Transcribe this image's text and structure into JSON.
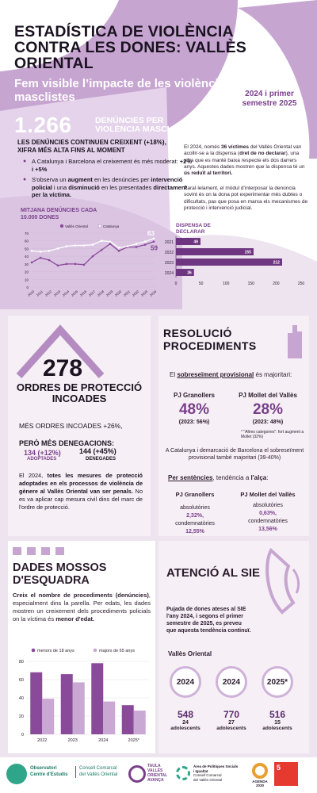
{
  "header": {
    "title": "ESTADÍSTICA DE VIOLÈNCIA CONTRA LES DONES: VALLÈS ORIENTAL",
    "subtitle": "Fem visible l’impacte de les violències masclistes",
    "period": "2024 i primer semestre 2025"
  },
  "denuncies": {
    "number": "1.266",
    "label": "DENÚNCIES PER VIOLÈNCIA MASCLISTA",
    "lead": "LES DENÚNCIES CONTINUEN CREIXENT (+18%), XIFRA MÉS ALTA FINS AL MOMENT",
    "bullet1_a": "A Catalunya i Barcelona el creixement és més moderat: ",
    "bullet1_b": "+2% i +5%",
    "bullet2_a": "S'observa un ",
    "bullet2_b": "augment",
    "bullet2_c": " en les denúncies per ",
    "bullet2_d": "intervenció policial",
    "bullet2_e": " i una ",
    "bullet2_f": "disminució",
    "bullet2_g": " en les presentades ",
    "bullet2_h": "directament per la víctima.",
    "right1_a": "El 2024, només ",
    "right1_b": "36 víctimes",
    "right1_c": " del Vallès Oriental van acollir-se a la dispensa (",
    "right1_d": "dret de no declarar",
    "right1_e": "), una xifra que es manté baixa respecte els dos darrers anys. Aquestes dades mostren que la dispensa té un ",
    "right1_f": "ús reduït al territori.",
    "right2": "Paral·lelament, el mòdul d'interposar la denúncia sovint és on la dona pot experimentar més dubtes o dificultats, pas que posa en marxa els mecanismes de protecció i intervenció judicial."
  },
  "chart_data": [
    {
      "type": "line",
      "title": "MITJANA DENÚNCIES CADA 10.000 DONES",
      "x": [
        "2010",
        "2011",
        "2012",
        "2013",
        "2014",
        "2015",
        "2016",
        "2017",
        "2018",
        "2019",
        "2020",
        "2021",
        "2022",
        "2023",
        "2024"
      ],
      "series": [
        {
          "name": "Vallès Oriental",
          "color": "#8a4a9a",
          "values": [
            32,
            38,
            35,
            28,
            30,
            30,
            29,
            40,
            48,
            56,
            47,
            52,
            52,
            55,
            59
          ]
        },
        {
          "name": "Catalunya",
          "color": "#ffffff",
          "values": [
            47,
            46,
            47,
            50,
            53,
            54,
            54,
            55,
            60,
            59,
            51,
            53,
            56,
            59,
            63
          ]
        }
      ],
      "ylim": [
        0,
        70
      ],
      "yticks": [
        0,
        10,
        20,
        30,
        40,
        50,
        60,
        70
      ],
      "annotations": [
        "63",
        "59"
      ],
      "legend": "top"
    },
    {
      "type": "bar",
      "orientation": "horizontal",
      "title": "DISPENSA DE DECLARAR",
      "categories": [
        "2021",
        "2022",
        "2023",
        "2024"
      ],
      "values": [
        49,
        155,
        212,
        36
      ],
      "xlim": [
        0,
        250
      ],
      "xticks": [
        0,
        50,
        100,
        150,
        200,
        250
      ],
      "color": "#6e3580"
    },
    {
      "type": "bar",
      "categories": [
        "2022",
        "2023",
        "2024",
        "2025*"
      ],
      "series": [
        {
          "name": "menors de 18 anys",
          "color": "#8a4a9a",
          "values": [
            68,
            66,
            78,
            32
          ]
        },
        {
          "name": "majors de 65 anys",
          "color": "#c9a8d3",
          "values": [
            39,
            57,
            36,
            26
          ]
        }
      ],
      "ylim": [
        0,
        80
      ],
      "yticks": [
        0,
        20,
        40,
        60,
        80
      ],
      "legend": "top"
    }
  ],
  "ordres": {
    "number": "278",
    "title": "ORDRES DE PROTECCIÓ INCOADES",
    "more": "MÉS ORDRES INCOADES +26%,",
    "denials": "PERÒ MÉS DENEGACIONS:",
    "adopted_value": "134 (+12%)",
    "adopted_label": "ADOPTADES",
    "denied_value": "144 (+45%)",
    "denied_label": "DENEGADES",
    "para_a": "El 2024, ",
    "para_b": "totes les mesures de protecció adoptades en els processos de violència de gènere al Vallès Oriental van ser penals.",
    "para_c": " No es va aplicar cap mesura civil dins del marc de l'ordre de protecció."
  },
  "resolucio": {
    "title": "RESOLUCIÓ PROCEDIMENTS",
    "intro_a": "El ",
    "intro_b": "sobreseïment provisional",
    "intro_c": " és majoritari:",
    "col1_title": "PJ Granollers",
    "col1_pct": "48%",
    "col1_prev": "(2023: 56%)",
    "col2_title": "PJ Mollet del Vallès",
    "col2_pct": "28%",
    "col2_prev": "(2023: 48%)",
    "note": "* \"Altres categories\": fort augment a Mollet (32%)",
    "demarc": "A Catalunya i demarcació de Barcelona el sobreseïment provisional també majoritari (39-40%)",
    "sent_a": "Per sentències",
    "sent_b": ", tendència a ",
    "sent_c": "l'alça",
    "sent_d": ":",
    "pj1": "PJ Granollers",
    "pj1_l1": "absolutòries",
    "pj1_v1": "2,32%,",
    "pj1_l2": "condemnatòries",
    "pj1_v2": "12,55%",
    "pj2": "PJ Mollet del Vallès",
    "pj2_l1": "absolutòries",
    "pj2_v1": "0,63%,",
    "pj2_l2": "condemnatòries",
    "pj2_v2": "13,56%"
  },
  "mossos": {
    "title": "DADES MOSSOS D'ESQUADRA",
    "para_a": "Creix el nombre de procediments (denúncies)",
    "para_b": ", especialment dins la parella. Per edats, les dades mostren un creixement dels procediments policials on la víctima és ",
    "para_c": "menor d'edat."
  },
  "sie": {
    "title": "ATENCIÓ AL SIE",
    "para": "Pujada de dones ateses al SIE l'any 2024, i segons el primer semestre de 2025, es preveu que aquesta tendència continuï.",
    "region": "Vallès Oriental",
    "years": [
      {
        "year": "2024",
        "women": "548",
        "teens": "24",
        "label": "adolescents"
      },
      {
        "year": "2024",
        "women": "770",
        "teens": "27",
        "label": "adolescents"
      },
      {
        "year": "2025*",
        "women": "516",
        "teens": "15",
        "label": "adolescents"
      }
    ]
  },
  "footer": {
    "org1_a": "Observatori",
    "org1_b": "Centre d'Estudis",
    "org2_a": "Consell Comarcal",
    "org2_b": "del Vallès Oriental",
    "org3_a": "TAULA",
    "org3_b": "VALLÈS",
    "org3_c": "ORIENTAL",
    "org3_d": "AVANÇA",
    "org4_a": "Àrea de Polítiques Socials",
    "org4_b": "i Igualtat",
    "org4_c": "Consell Comarcal",
    "org4_d": "del Vallès Oriental",
    "agenda_a": "AGENDA",
    "agenda_b": "2030",
    "sdg": "5"
  }
}
